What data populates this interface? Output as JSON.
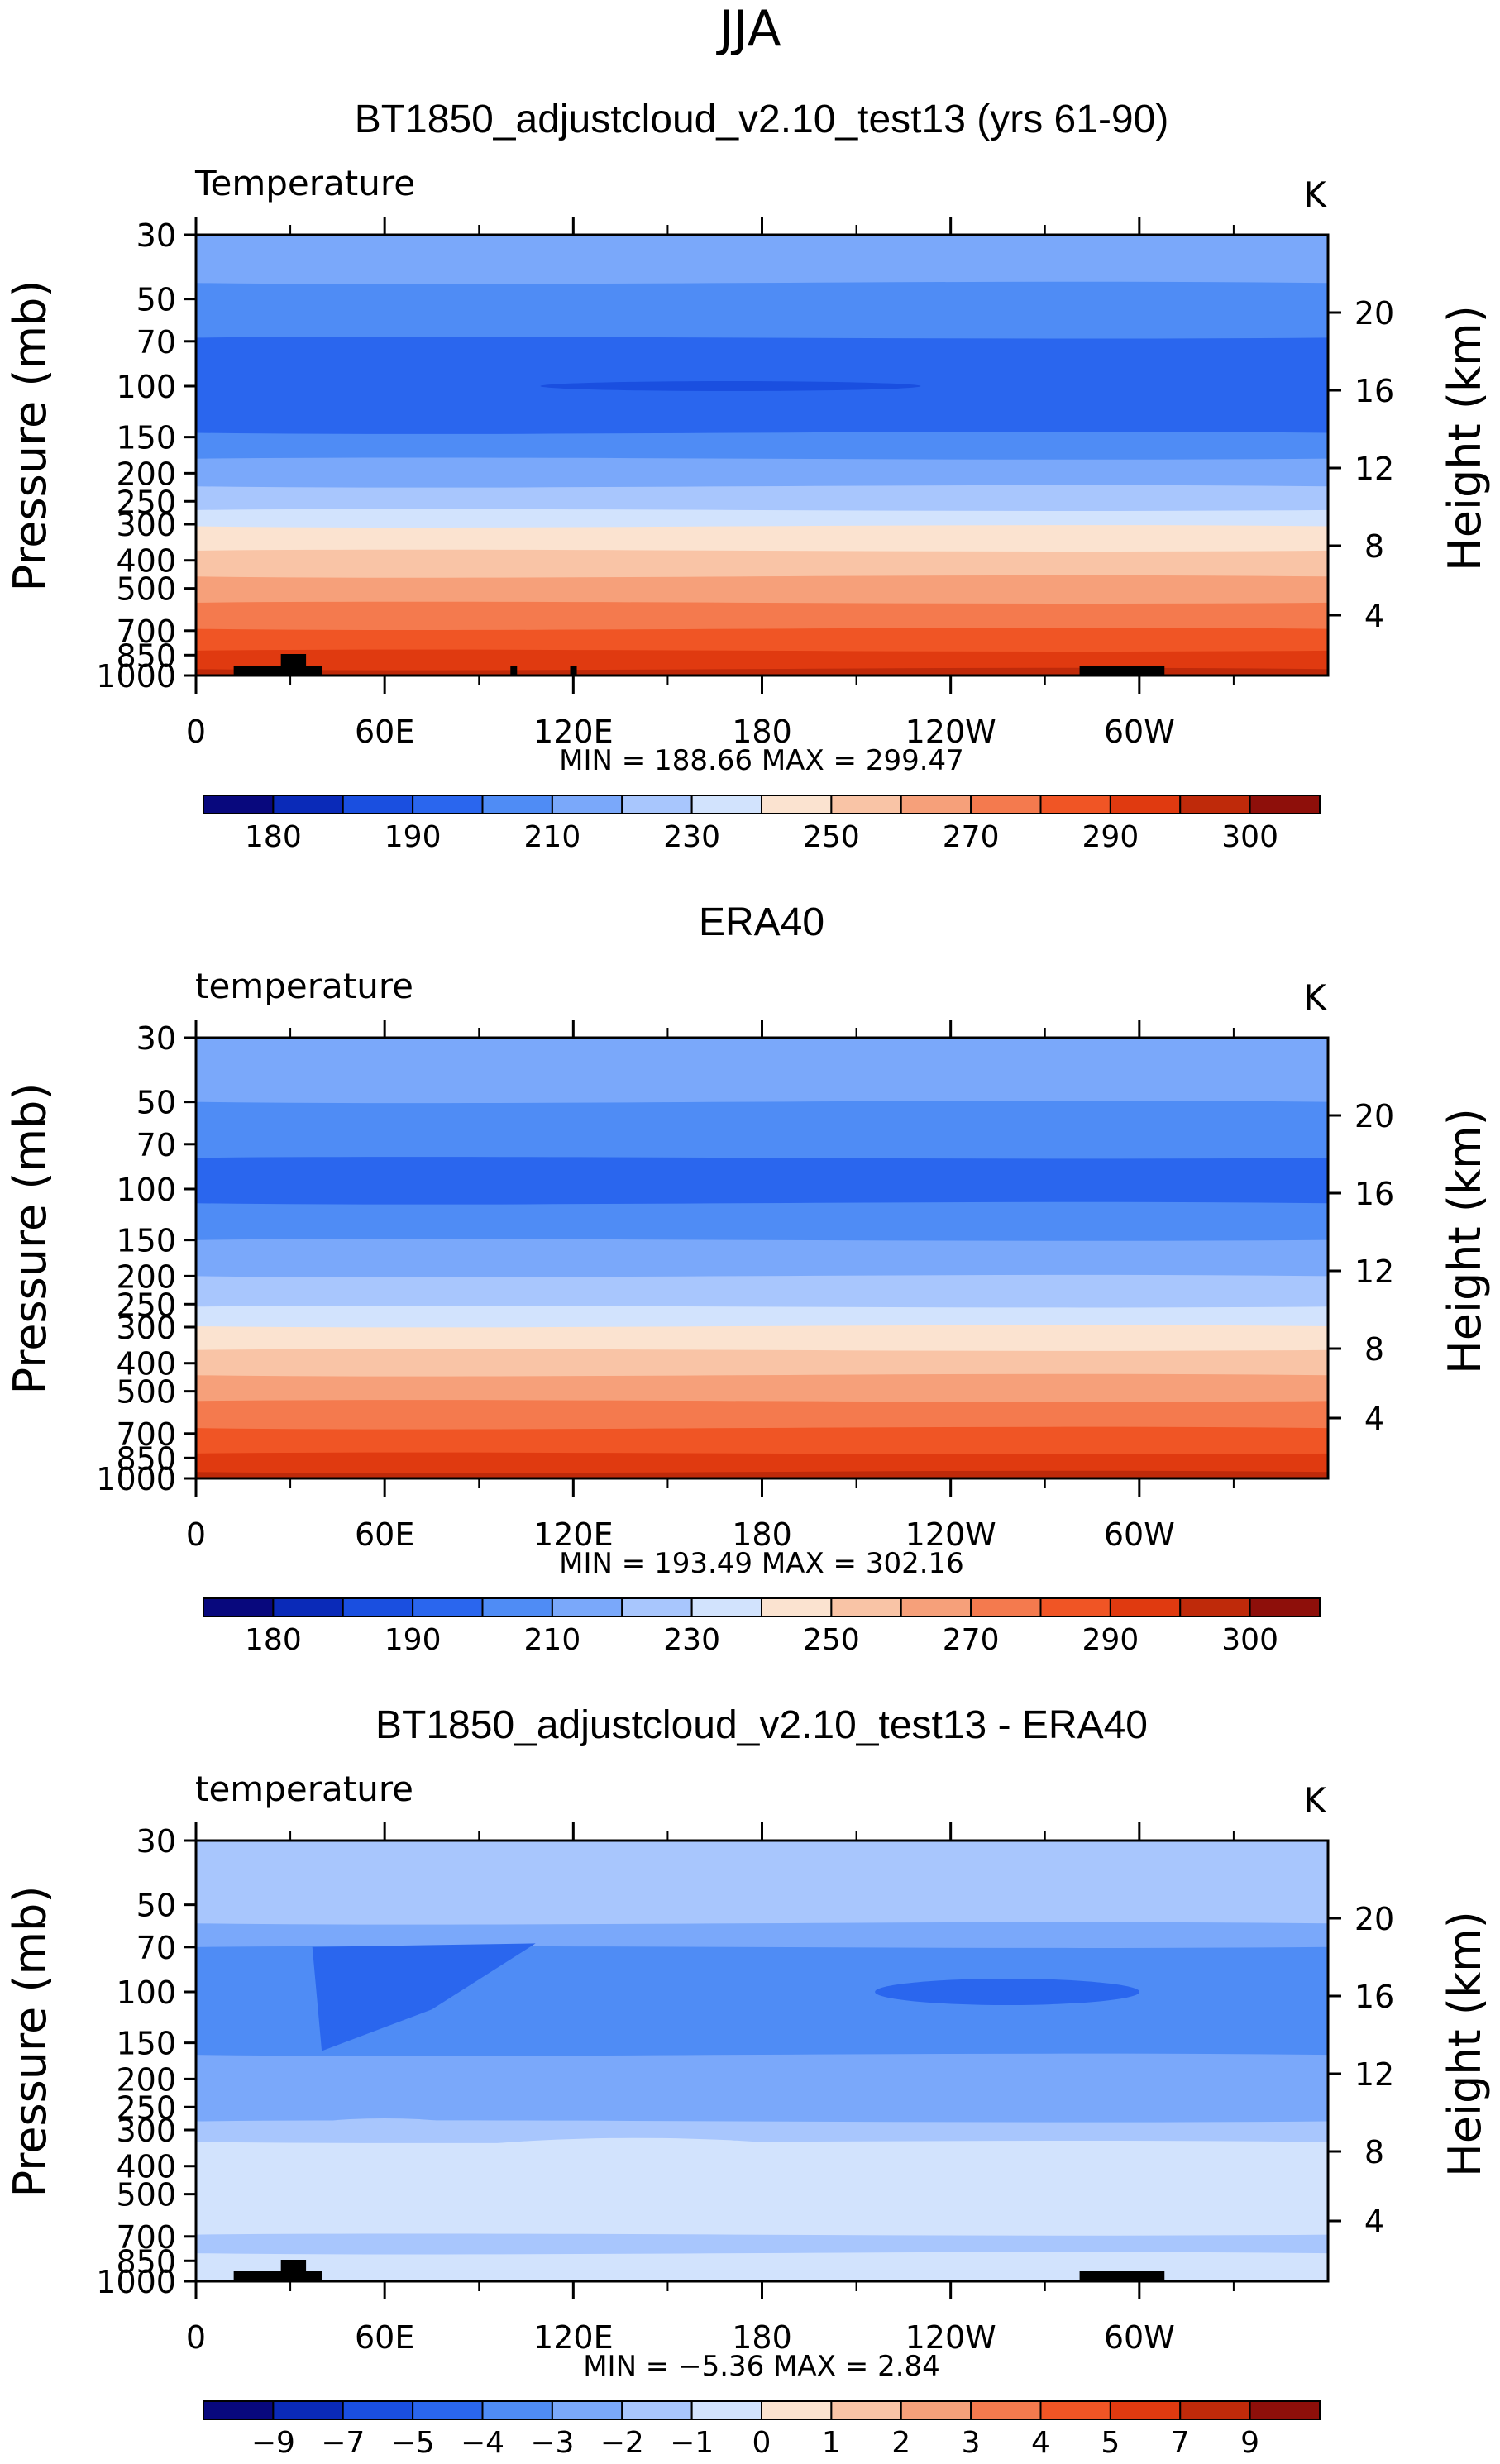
{
  "page": {
    "title": "JJA"
  },
  "chart_data": [
    {
      "type": "contour",
      "title": "BT1850_adjustcloud_v2.10_test13 (yrs 61-90)",
      "variable": "Temperature",
      "units": "K",
      "ylabel": "Pressure (mb)",
      "ylabel_right": "Height (km)",
      "pressure_ticks": [
        30,
        50,
        70,
        100,
        150,
        200,
        250,
        300,
        400,
        500,
        700,
        850,
        1000
      ],
      "height_ticks": [
        4,
        8,
        12,
        16,
        20
      ],
      "x_tick_labels": [
        "0",
        "60E",
        "120E",
        "180",
        "120W",
        "60W"
      ],
      "stats_text": "MIN =  188.66    MAX =  299.47",
      "min": 188.66,
      "max": 299.47,
      "colorbar_labels": [
        "180",
        "190",
        "210",
        "230",
        "250",
        "270",
        "290",
        "300"
      ],
      "colorbar_colors": [
        "#08087d",
        "#0a2ab8",
        "#1a4fe0",
        "#2a66ee",
        "#4f8cf5",
        "#7aa8fa",
        "#a8c6fd",
        "#d2e3fd",
        "#fbe3d0",
        "#f9c4a6",
        "#f6a07a",
        "#f47a4e",
        "#f05525",
        "#e03a10",
        "#bf2a0a",
        "#8e0f0a"
      ]
    },
    {
      "type": "contour",
      "title": "ERA40",
      "variable": "temperature",
      "units": "K",
      "ylabel": "Pressure (mb)",
      "ylabel_right": "Height (km)",
      "pressure_ticks": [
        30,
        50,
        70,
        100,
        150,
        200,
        250,
        300,
        400,
        500,
        700,
        850,
        1000
      ],
      "height_ticks": [
        4,
        8,
        12,
        16,
        20
      ],
      "x_tick_labels": [
        "0",
        "60E",
        "120E",
        "180",
        "120W",
        "60W"
      ],
      "stats_text": "MIN =  193.49    MAX =  302.16",
      "min": 193.49,
      "max": 302.16,
      "colorbar_labels": [
        "180",
        "190",
        "210",
        "230",
        "250",
        "270",
        "290",
        "300"
      ],
      "colorbar_colors": [
        "#08087d",
        "#0a2ab8",
        "#1a4fe0",
        "#2a66ee",
        "#4f8cf5",
        "#7aa8fa",
        "#a8c6fd",
        "#d2e3fd",
        "#fbe3d0",
        "#f9c4a6",
        "#f6a07a",
        "#f47a4e",
        "#f05525",
        "#e03a10",
        "#bf2a0a",
        "#8e0f0a"
      ]
    },
    {
      "type": "contour",
      "title": "BT1850_adjustcloud_v2.10_test13 - ERA40",
      "variable": "temperature",
      "units": "K",
      "ylabel": "Pressure (mb)",
      "ylabel_right": "Height (km)",
      "pressure_ticks": [
        30,
        50,
        70,
        100,
        150,
        200,
        250,
        300,
        400,
        500,
        700,
        850,
        1000
      ],
      "height_ticks": [
        4,
        8,
        12,
        16,
        20
      ],
      "x_tick_labels": [
        "0",
        "60E",
        "120E",
        "180",
        "120W",
        "60W"
      ],
      "stats_text": "MIN =    −5.36    MAX =     2.84",
      "min": -5.36,
      "max": 2.84,
      "colorbar_labels": [
        "−9",
        "−7",
        "−5",
        "−4",
        "−3",
        "−2",
        "−1",
        "0",
        "1",
        "2",
        "3",
        "4",
        "5",
        "7",
        "9"
      ],
      "colorbar_colors": [
        "#08087d",
        "#0a2ab8",
        "#1a4fe0",
        "#2a66ee",
        "#4f8cf5",
        "#7aa8fa",
        "#a8c6fd",
        "#d2e3fd",
        "#fbe3d0",
        "#f9c4a6",
        "#f6a07a",
        "#f47a4e",
        "#f05525",
        "#e03a10",
        "#bf2a0a",
        "#8e0f0a"
      ]
    }
  ]
}
